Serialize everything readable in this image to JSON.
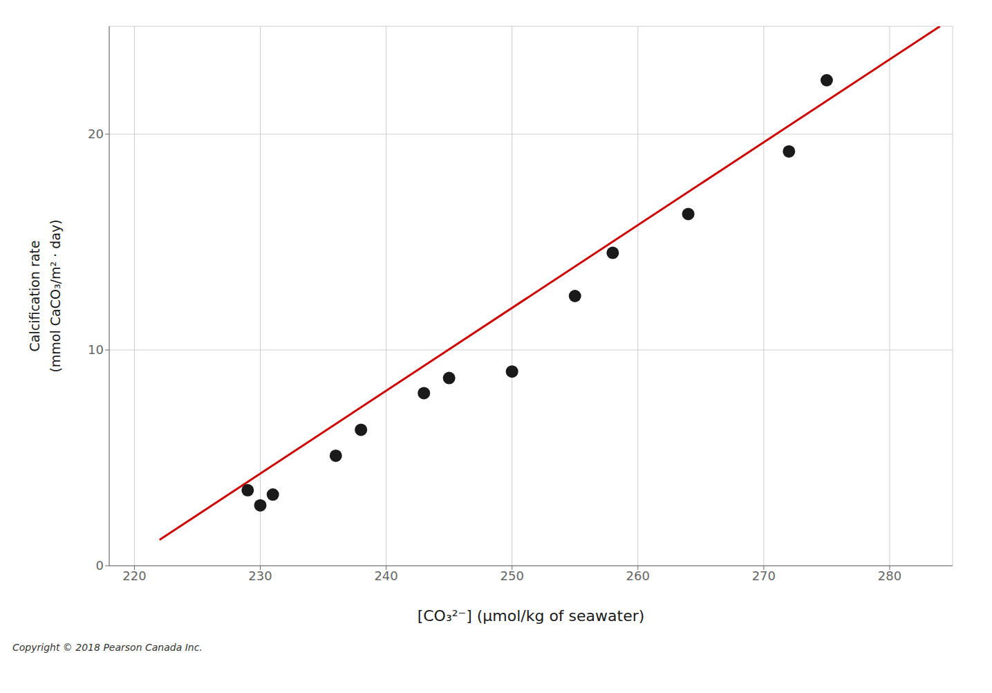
{
  "chart_data": {
    "type": "scatter",
    "xlabel": "[CO₃²⁻] (μmol/kg of seawater)",
    "ylabel": [
      "Calcification rate",
      "(mmol CaCO₃/m² · day)"
    ],
    "annotations": [
      "Copyright © 2018 Pearson Canada Inc."
    ],
    "series": [
      {
        "type": "line",
        "color": "#cc0000",
        "x": [
          222,
          284
        ],
        "values": [
          1.2,
          25.0
        ]
      },
      {
        "type": "scatter",
        "color": "#1a1a1a",
        "x": [
          229,
          230,
          231,
          236,
          238,
          243,
          245,
          250,
          255,
          258,
          264,
          272,
          275
        ],
        "values": [
          3.5,
          2.8,
          3.3,
          5.1,
          6.3,
          8.0,
          8.7,
          9.0,
          12.5,
          14.5,
          16.3,
          19.2,
          22.5
        ]
      }
    ],
    "xlim": [
      218,
      285
    ],
    "ylim": [
      0,
      25
    ],
    "xticks": [
      220,
      230,
      240,
      250,
      260,
      270,
      280
    ],
    "yticks": [
      0,
      10,
      20
    ],
    "grid": true
  }
}
